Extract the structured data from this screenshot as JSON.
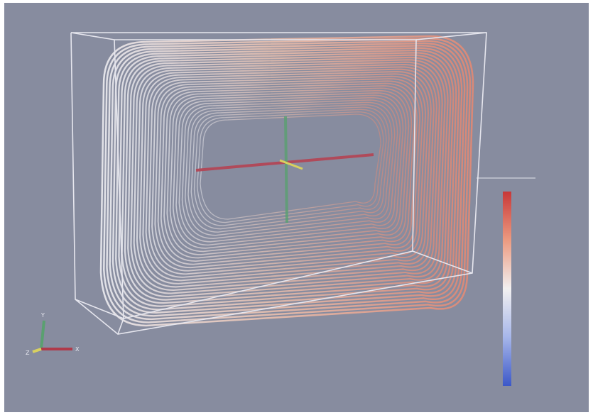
{
  "orientation_axes": {
    "labels": [
      "X",
      "Y",
      "Z"
    ]
  }
}
